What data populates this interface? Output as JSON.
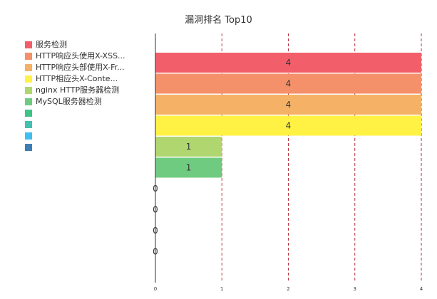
{
  "chart_data": {
    "type": "bar",
    "orientation": "horizontal",
    "title": "漏洞排名 Top10",
    "categories": [
      "服务检测",
      "HTTP响应头使用X-XSS...",
      "HTTP响应头部使用X-Fr...",
      "HTTP相应头X-Conte...",
      "nginx HTTP服务器检测",
      "MySQL服务器检测",
      "",
      "",
      "",
      ""
    ],
    "values": [
      4,
      4,
      4,
      4,
      1,
      1,
      0,
      0,
      0,
      0
    ],
    "colors": [
      "#f25f6a",
      "#f5916a",
      "#f5b266",
      "#fff244",
      "#afd66f",
      "#6fcb7f",
      "#3fc387",
      "#44bfb0",
      "#41bef0",
      "#3d7fb5"
    ],
    "xlim": [
      0,
      4
    ],
    "xticks": [
      "0",
      "1",
      "2",
      "3",
      "4"
    ],
    "grid": "dashed vertical",
    "legend_position": "left"
  }
}
